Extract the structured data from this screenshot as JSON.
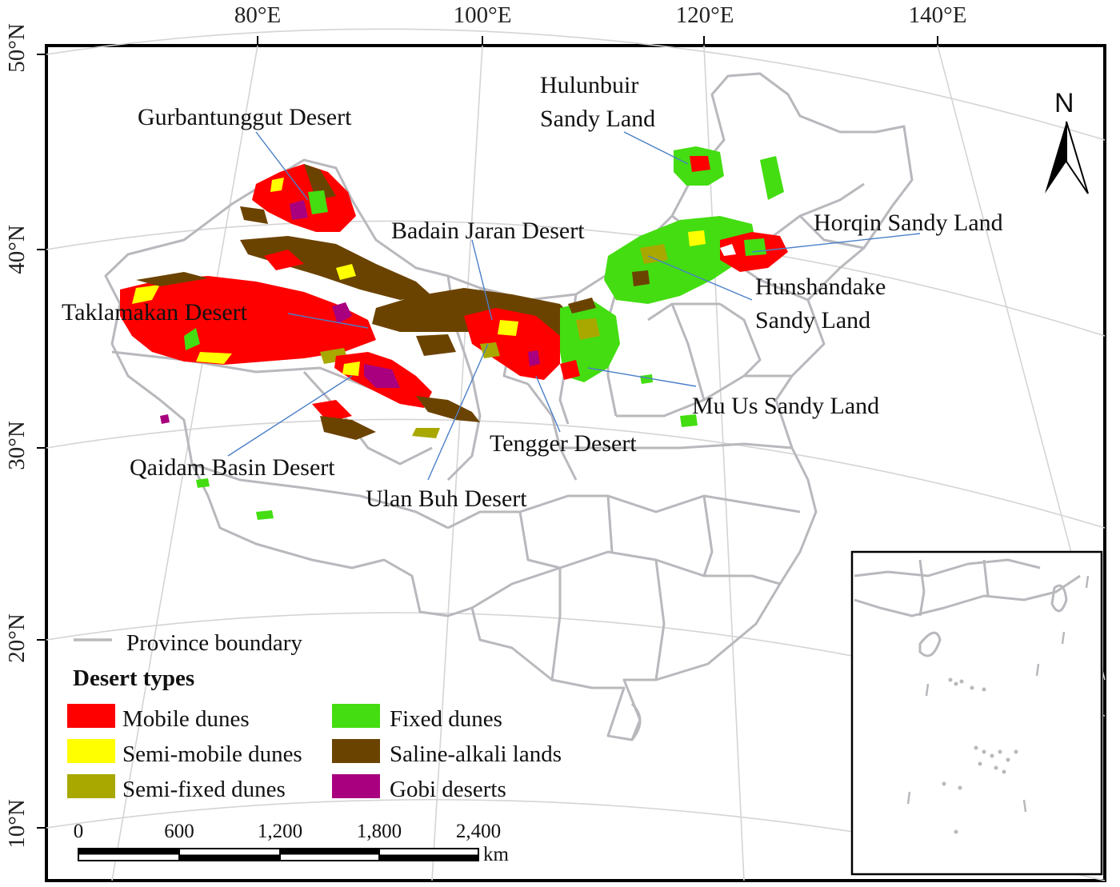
{
  "colors": {
    "mobile": "#ff0000",
    "semi_mobile": "#ffff00",
    "semi_fixed": "#a8a800",
    "fixed": "#44dd11",
    "saline": "#6b4300",
    "gobi": "#a8007f",
    "boundary": "#b8b8bd",
    "leader": "#4a7fc8"
  },
  "ticks": {
    "lon": [
      "80°E",
      "100°E",
      "120°E",
      "140°E"
    ],
    "lat": [
      "50°N",
      "40°N",
      "30°N",
      "20°N",
      "10°N"
    ]
  },
  "deserts": [
    {
      "name": "Gurbantunggut Desert",
      "lines": [
        "Gurbantunggut Desert"
      ]
    },
    {
      "name": "Hulunbuir Sandy Land",
      "lines": [
        "Hulunbuir",
        "Sandy Land"
      ]
    },
    {
      "name": "Badain Jaran Desert",
      "lines": [
        "Badain Jaran Desert"
      ]
    },
    {
      "name": "Horqin Sandy Land",
      "lines": [
        "Horqin Sandy Land"
      ]
    },
    {
      "name": "Hunshandake Sandy Land",
      "lines": [
        "Hunshandake",
        "Sandy Land"
      ]
    },
    {
      "name": "Taklamakan Desert",
      "lines": [
        "Taklamakan Desert"
      ]
    },
    {
      "name": "Mu Us Sandy Land",
      "lines": [
        "Mu Us Sandy Land"
      ]
    },
    {
      "name": "Tengger Desert",
      "lines": [
        "Tengger Desert"
      ]
    },
    {
      "name": "Qaidam Basin Desert",
      "lines": [
        "Qaidam Basin Desert"
      ]
    },
    {
      "name": "Ulan Buh Desert",
      "lines": [
        "Ulan Buh Desert"
      ]
    }
  ],
  "north_label": "N",
  "legend": {
    "boundary_label": "Province boundary",
    "title": "Desert types",
    "items": [
      {
        "label": "Mobile dunes",
        "color": "#ff0000"
      },
      {
        "label": "Semi-mobile dunes",
        "color": "#ffff00"
      },
      {
        "label": "Semi-fixed dunes",
        "color": "#a8a800"
      },
      {
        "label": "Fixed dunes",
        "color": "#44dd11"
      },
      {
        "label": "Saline-alkali lands",
        "color": "#6b4300"
      },
      {
        "label": "Gobi deserts",
        "color": "#a8007f"
      }
    ]
  },
  "scale_bar": {
    "labels": [
      "0",
      "600",
      "1,200",
      "1,800",
      "2,400"
    ],
    "unit": "km"
  }
}
